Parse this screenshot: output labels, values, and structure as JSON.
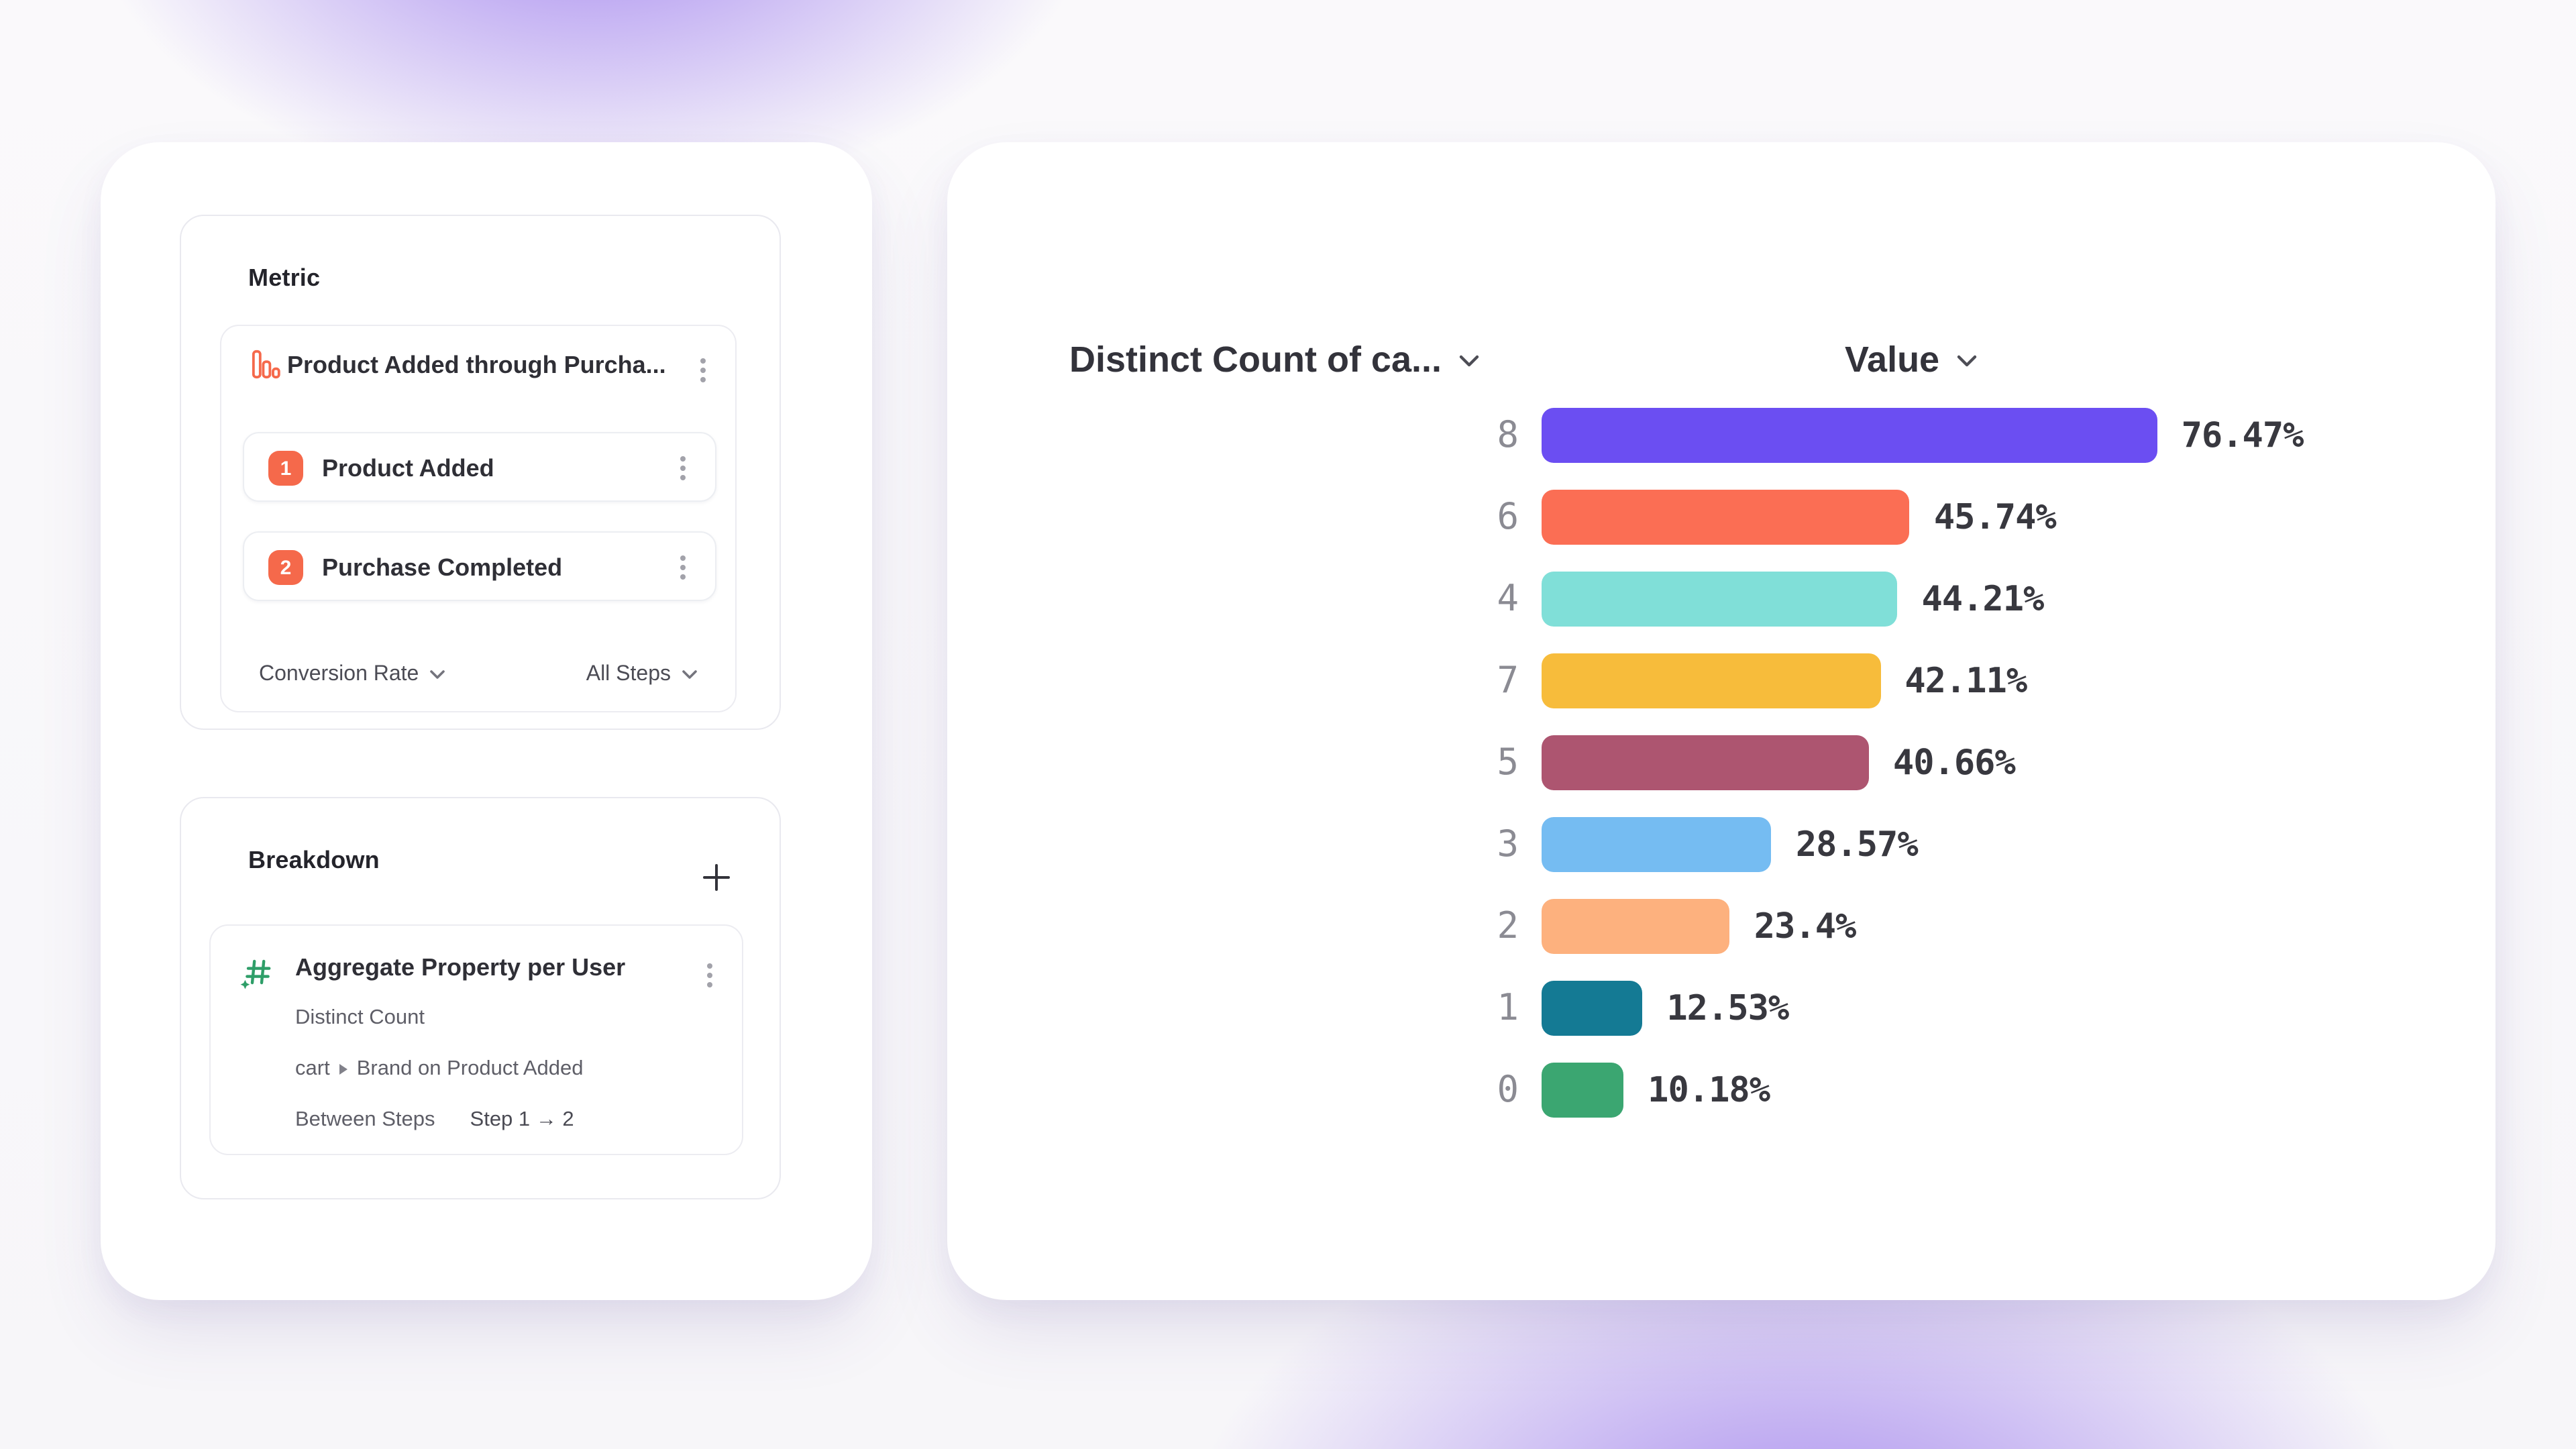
{
  "metric_panel": {
    "title": "Metric",
    "funnel": {
      "name": "Product Added through Purcha...",
      "icon": "funnel-bars-icon",
      "steps": [
        {
          "number": "1",
          "label": "Product Added"
        },
        {
          "number": "2",
          "label": "Purchase Completed"
        }
      ],
      "footer": {
        "measure_dropdown": "Conversion Rate",
        "steps_dropdown": "All Steps"
      }
    }
  },
  "breakdown_panel": {
    "title": "Breakdown",
    "add_icon": "plus",
    "card": {
      "icon": "hash-sparkle-icon",
      "title": "Aggregate Property per User",
      "aggregation": "Distinct Count",
      "property_event": "cart",
      "property_target": "Brand on Product Added",
      "between_label": "Between Steps",
      "between_value": "Step 1 → 2"
    }
  },
  "chart": {
    "column_headers": [
      {
        "label": "Distinct Count of ca...",
        "icon": "chevron-down"
      },
      {
        "label": "Value",
        "icon": "chevron-down"
      }
    ]
  },
  "chart_data": {
    "type": "bar",
    "orientation": "horizontal",
    "categories": [
      "8",
      "6",
      "4",
      "7",
      "5",
      "3",
      "2",
      "1",
      "0"
    ],
    "values": [
      76.47,
      45.74,
      44.21,
      42.11,
      40.66,
      28.57,
      23.4,
      12.53,
      10.18
    ],
    "labels": [
      "76.47%",
      "45.74%",
      "44.21%",
      "42.11%",
      "40.66%",
      "28.57%",
      "23.4%",
      "12.53%",
      "10.18%"
    ],
    "colors": [
      "#6b4ef2",
      "#fb6e54",
      "#80dfd8",
      "#f7bc3b",
      "#ad5570",
      "#75bcf2",
      "#fdb17e",
      "#147a94",
      "#3ba671"
    ],
    "xlim": [
      0,
      100
    ],
    "grid": false,
    "legend": "none",
    "xlabel": "Value",
    "ylabel": "Distinct Count of ca..."
  },
  "colors": {
    "accent_orange": "#f5694b",
    "accent_green": "#2e9e68",
    "background_purple": "#9674ec"
  }
}
